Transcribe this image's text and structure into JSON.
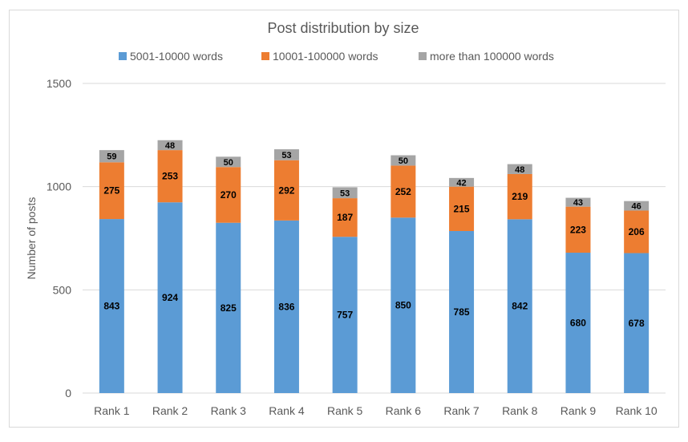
{
  "chart_data": {
    "type": "bar",
    "stacked": true,
    "title": "Post distribution by size",
    "xlabel": "",
    "ylabel": "Number of posts",
    "ylim": [
      0,
      1500
    ],
    "yticks": [
      0,
      500,
      1000,
      1500
    ],
    "grid": true,
    "legend_position": "top",
    "categories": [
      "Rank 1",
      "Rank 2",
      "Rank 3",
      "Rank 4",
      "Rank 5",
      "Rank 6",
      "Rank 7",
      "Rank 8",
      "Rank 9",
      "Rank 10"
    ],
    "series": [
      {
        "name": "5001-10000 words",
        "color": "#5b9bd5",
        "values": [
          843,
          924,
          825,
          836,
          757,
          850,
          785,
          842,
          680,
          678
        ]
      },
      {
        "name": "10001-100000 words",
        "color": "#ed7d31",
        "values": [
          275,
          253,
          270,
          292,
          187,
          252,
          215,
          219,
          223,
          206
        ]
      },
      {
        "name": "more than 100000 words",
        "color": "#a5a5a5",
        "values": [
          59,
          48,
          50,
          53,
          53,
          50,
          42,
          48,
          43,
          46
        ]
      }
    ]
  }
}
